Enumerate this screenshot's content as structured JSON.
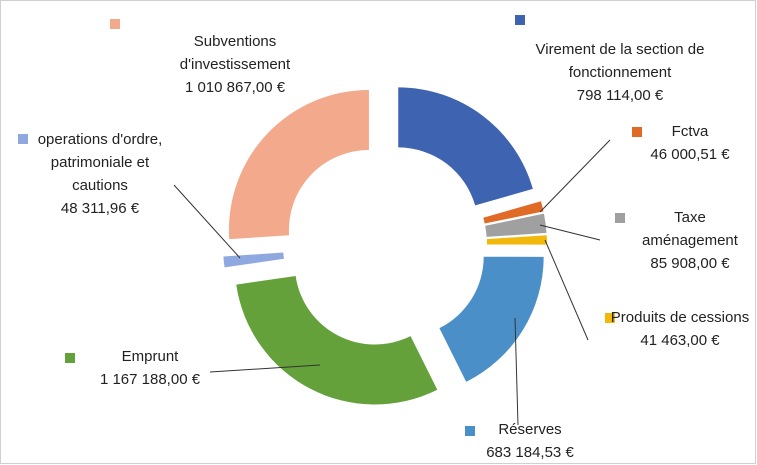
{
  "chart_data": {
    "type": "donut",
    "categories": [
      "Virement de la section de fonctionnement",
      "Fctva",
      "Taxe aménagement",
      "Produits de cessions",
      "Réserves",
      "Emprunt",
      "operations d'ordre, patrimoniale et cautions",
      "Subventions d'investissement"
    ],
    "values": [
      798114.0,
      46000.51,
      85908.0,
      41463.0,
      683184.53,
      1167188.0,
      48311.96,
      1010867.0
    ],
    "value_labels": [
      "798 114,00 €",
      "46 000,51 €",
      "85 908,00 €",
      "41 463,00 €",
      "683 184,53 €",
      "1 167 188,00 €",
      "48 311,96 €",
      "1 010 867,00 €"
    ],
    "colors": [
      "#3e63b0",
      "#e06b26",
      "#a0a0a0",
      "#f2b90c",
      "#4b8fc8",
      "#64a13a",
      "#8fa8e0",
      "#f2a98c"
    ]
  }
}
